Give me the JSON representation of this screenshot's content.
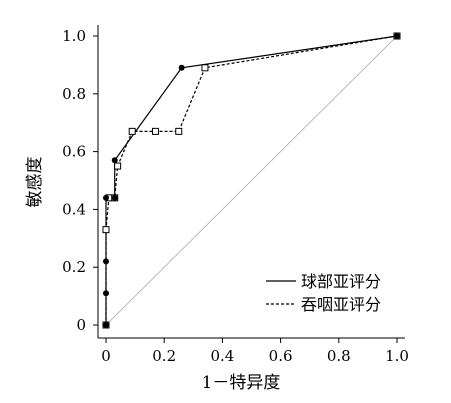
{
  "chart_data": {
    "type": "line",
    "title": "",
    "xlabel": "1－特异度",
    "ylabel": "敏感度",
    "xlim": [
      0,
      1.0
    ],
    "ylim": [
      0,
      1.0
    ],
    "x_ticks": [
      "0",
      "0.2",
      "0.4",
      "0.6",
      "0.8",
      "1.0"
    ],
    "y_ticks": [
      "0",
      "0.2",
      "0.4",
      "0.6",
      "0.8",
      "1.0"
    ],
    "grid": false,
    "legend_position": "bottom-right",
    "reference_line": {
      "x": [
        0,
        1
      ],
      "y": [
        0,
        1
      ],
      "color": "#aaaaaa"
    },
    "series": [
      {
        "name": "球部亚评分",
        "line_style": "solid",
        "marker": "filled-circle",
        "color": "#000000",
        "x": [
          0,
          0,
          0,
          0,
          0.03,
          0.03,
          0.26,
          1.0
        ],
        "y": [
          0,
          0.11,
          0.22,
          0.44,
          0.44,
          0.57,
          0.89,
          1.0
        ]
      },
      {
        "name": "吞咽亚评分",
        "line_style": "dashed",
        "marker": "open-square",
        "color": "#000000",
        "x": [
          0,
          0,
          0.01,
          0.03,
          0.04,
          0.09,
          0.17,
          0.25,
          0.34,
          1.0
        ],
        "y": [
          0,
          0.33,
          0.44,
          0.44,
          0.55,
          0.67,
          0.67,
          0.67,
          0.89,
          1.0
        ]
      }
    ]
  }
}
